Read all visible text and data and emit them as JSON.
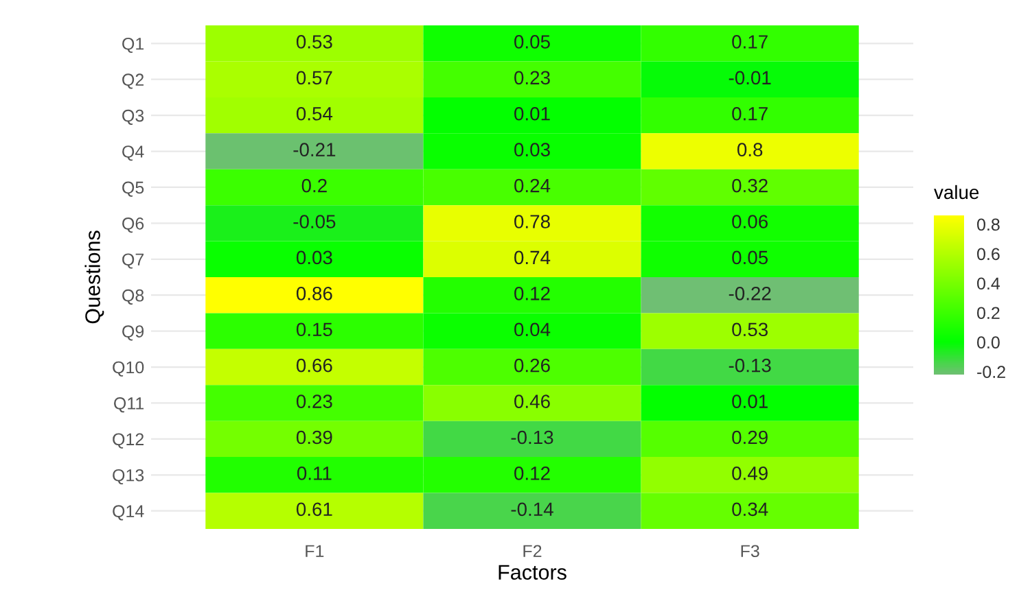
{
  "chart_data": {
    "type": "heatmap",
    "xlabel": "Factors",
    "ylabel": "Questions",
    "clabel": "value",
    "categories": [
      "F1",
      "F2",
      "F3"
    ],
    "y_categories": [
      "Q1",
      "Q2",
      "Q3",
      "Q4",
      "Q5",
      "Q6",
      "Q7",
      "Q8",
      "Q9",
      "Q10",
      "Q11",
      "Q12",
      "Q13",
      "Q14"
    ],
    "cells": [
      [
        0.53,
        0.05,
        0.17
      ],
      [
        0.57,
        0.23,
        -0.01
      ],
      [
        0.54,
        0.01,
        0.17
      ],
      [
        -0.21,
        0.03,
        0.8
      ],
      [
        0.2,
        0.24,
        0.32
      ],
      [
        -0.05,
        0.78,
        0.06
      ],
      [
        0.03,
        0.74,
        0.05
      ],
      [
        0.86,
        0.12,
        -0.22
      ],
      [
        0.15,
        0.04,
        0.53
      ],
      [
        0.66,
        0.26,
        -0.13
      ],
      [
        0.23,
        0.46,
        0.01
      ],
      [
        0.39,
        -0.13,
        0.29
      ],
      [
        0.11,
        0.12,
        0.49
      ],
      [
        0.61,
        -0.14,
        0.34
      ]
    ],
    "colors": [
      "#6fbf73",
      "#00ff00",
      "#ffff00"
    ],
    "clim": [
      -0.22,
      0.86
    ],
    "cticks": [
      -0.2,
      {
        "value": 0,
        "label": "0.0"
      },
      0.2,
      0.4,
      0.6,
      0.8
    ],
    "data_labels": true,
    "grid": "y"
  }
}
